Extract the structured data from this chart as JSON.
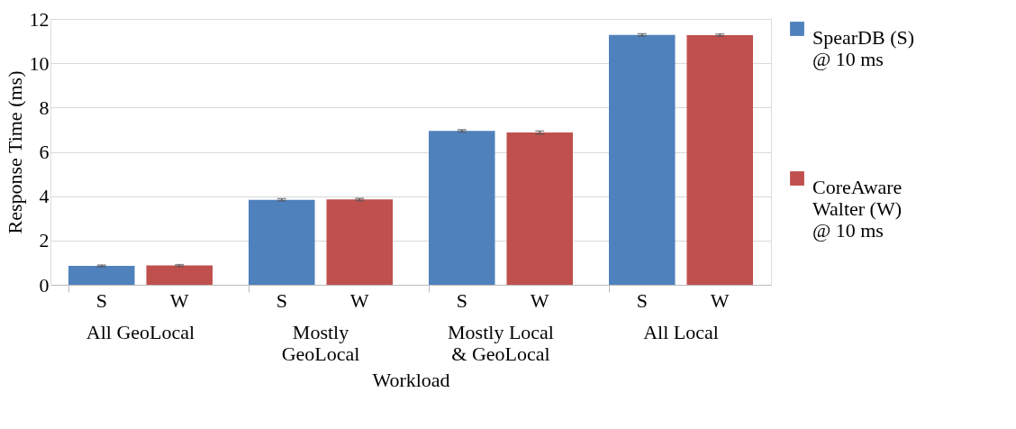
{
  "chart_data": {
    "type": "bar",
    "xlabel": "Workload",
    "ylabel": "Response Time (ms)",
    "categories": [
      "All GeoLocal",
      "Mostly\nGeoLocal",
      "Mostly Local\n& GeoLocal",
      "All Local"
    ],
    "series": [
      {
        "name": "SpearDB (S)\n@ 10 ms",
        "color": "#4f81bd",
        "values": [
          0.85,
          3.83,
          6.95,
          11.28
        ],
        "errors": [
          0.04,
          0.05,
          0.05,
          0.05
        ]
      },
      {
        "name": "CoreAware\nWalter (W)\n@ 10 ms",
        "color": "#c0504d",
        "values": [
          0.87,
          3.85,
          6.87,
          11.27
        ],
        "errors": [
          0.04,
          0.05,
          0.07,
          0.05
        ]
      }
    ],
    "annotations": [
      "S",
      "W",
      "S",
      "W",
      "S",
      "W",
      "S",
      "W"
    ],
    "ylim": [
      0,
      12
    ],
    "yticks": [
      0,
      2,
      4,
      6,
      8,
      10,
      12
    ],
    "grid": "y",
    "legend": "right"
  }
}
